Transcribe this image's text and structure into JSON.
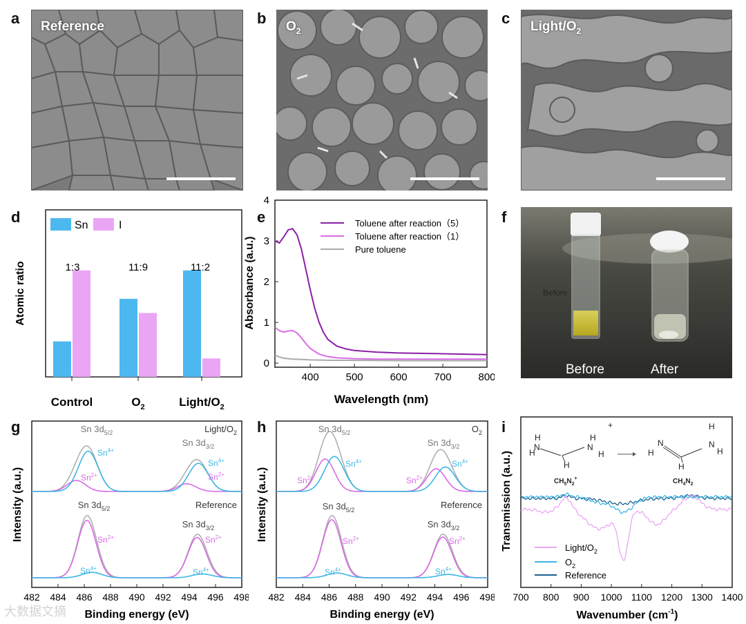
{
  "panels": {
    "a": {
      "letter": "a",
      "title": "Reference"
    },
    "b": {
      "letter": "b",
      "title_main": "O",
      "title_sub": "2"
    },
    "c": {
      "letter": "c",
      "title_main": "Light/O",
      "title_sub": "2"
    },
    "d": {
      "letter": "d"
    },
    "e": {
      "letter": "e"
    },
    "f": {
      "letter": "f",
      "before": "Before",
      "after": "After",
      "annotation": "Before"
    },
    "g": {
      "letter": "g"
    },
    "h": {
      "letter": "h"
    },
    "i": {
      "letter": "i"
    }
  },
  "colors": {
    "sn_blue": "#4db8f0",
    "i_pink": "#eaa6f5",
    "purple": "#8a1ea6",
    "magenta": "#d86be6",
    "gray": "#aaaaaa",
    "darkblue": "#1b5e8c",
    "cyan": "#3cb6e6"
  },
  "chart_data": [
    {
      "id": "d",
      "type": "bar",
      "ylabel": "Atomic ratio",
      "categories": [
        "Control",
        "O2",
        "Light/O2"
      ],
      "category_labels": [
        {
          "main": "Control",
          "sub": ""
        },
        {
          "main": "O",
          "sub": "2"
        },
        {
          "main": "Light/O",
          "sub": "2"
        }
      ],
      "ratios": [
        "1:3",
        "11:9",
        "11:2"
      ],
      "series": [
        {
          "name": "Sn",
          "values": [
            0.25,
            0.55,
            0.75
          ]
        },
        {
          "name": "I",
          "values": [
            0.75,
            0.45,
            0.13
          ]
        }
      ],
      "ylim": [
        0,
        1
      ]
    },
    {
      "id": "e",
      "type": "line",
      "xlabel": "Wavelength (nm)",
      "ylabel": "Absorbance (a.u.)",
      "xlim": [
        320,
        800
      ],
      "ylim": [
        -0.1,
        4
      ],
      "xticks": [
        400,
        500,
        600,
        700,
        800
      ],
      "yticks": [
        0,
        1,
        2,
        3,
        4
      ],
      "series": [
        {
          "name": "Toluene after reaction（5）",
          "x": [
            320,
            330,
            340,
            350,
            360,
            370,
            380,
            390,
            400,
            410,
            420,
            430,
            440,
            460,
            480,
            500,
            550,
            600,
            650,
            700,
            750,
            800
          ],
          "y": [
            3.0,
            2.95,
            3.1,
            3.27,
            3.3,
            3.15,
            2.8,
            2.3,
            1.8,
            1.35,
            1.0,
            0.75,
            0.58,
            0.42,
            0.35,
            0.31,
            0.27,
            0.25,
            0.24,
            0.23,
            0.22,
            0.21
          ]
        },
        {
          "name": "Toluene after reaction（1）",
          "x": [
            320,
            330,
            340,
            350,
            360,
            370,
            380,
            390,
            400,
            420,
            440,
            460,
            500,
            550,
            600,
            700,
            800
          ],
          "y": [
            0.88,
            0.8,
            0.76,
            0.79,
            0.8,
            0.74,
            0.62,
            0.48,
            0.36,
            0.22,
            0.16,
            0.13,
            0.11,
            0.1,
            0.1,
            0.1,
            0.1
          ]
        },
        {
          "name": "Pure toluene",
          "x": [
            320,
            330,
            340,
            360,
            380,
            400,
            450,
            500,
            600,
            700,
            800
          ],
          "y": [
            0.2,
            0.15,
            0.12,
            0.1,
            0.09,
            0.08,
            0.07,
            0.07,
            0.06,
            0.06,
            0.06
          ]
        }
      ]
    },
    {
      "id": "g",
      "type": "line",
      "xlabel": "Binding energy (eV)",
      "ylabel": "Intensity (a.u.)",
      "xlim": [
        482,
        498
      ],
      "xticks": [
        482,
        484,
        486,
        488,
        490,
        492,
        494,
        496,
        498
      ],
      "top_label": "Light/O2",
      "bottom_label": "Reference",
      "annotations": {
        "top_d52": "Sn 3d5/2",
        "top_d32": "Sn 3d3/2",
        "sn4": "Sn4+",
        "sn2": "Sn2+"
      }
    },
    {
      "id": "h",
      "type": "line",
      "xlabel": "Binding energy (eV)",
      "ylabel": "Intensity (a.u.)",
      "xlim": [
        482,
        498
      ],
      "xticks": [
        482,
        484,
        486,
        488,
        490,
        492,
        494,
        496,
        498
      ],
      "top_label": "O2",
      "bottom_label": "Reference"
    },
    {
      "id": "i",
      "type": "line",
      "xlabel": "Wavenumber (cm-1)",
      "ylabel": "Transmission (a.u.)",
      "xlim": [
        700,
        1400
      ],
      "xticks": [
        700,
        800,
        900,
        1000,
        1100,
        1200,
        1300,
        1400
      ],
      "legend": [
        "Light/O2",
        "O2",
        "Reference"
      ],
      "molecules": {
        "left": "CH5N2+",
        "right": "CH4N2"
      }
    }
  ],
  "labels": {
    "sn": "Sn",
    "i": "I",
    "sn_sup4": "4+",
    "sn_sup2": "2+",
    "d52_main": "Sn 3d",
    "d52_sub": "5/2",
    "d32_main": "Sn 3d",
    "d32_sub": "3/2",
    "sn4": "Sn",
    "sn2": "Sn",
    "g_top": "Light/O",
    "g_top_sub": "2",
    "g_bottom": "Reference",
    "h_top_main": "O",
    "h_top_sub": "2",
    "h_bottom": "Reference",
    "i_leg1": "Light/O",
    "i_leg1_sub": "2",
    "i_leg2": "O",
    "i_leg2_sub": "2",
    "i_leg3": "Reference",
    "mol_left_label": "CH",
    "mol_left_sub1": "5",
    "mol_left_N": "N",
    "mol_left_sub2": "2",
    "mol_left_sup": "+",
    "mol_right_label": "CH",
    "mol_right_sub1": "4",
    "mol_right_N": "N",
    "mol_right_sub2": "2",
    "plus": "+",
    "wavenum_xlabel": "Wavenumber (cm",
    "wavenum_sup": "-1",
    "wavenum_close": ")",
    "watermark": "大数据文摘"
  }
}
